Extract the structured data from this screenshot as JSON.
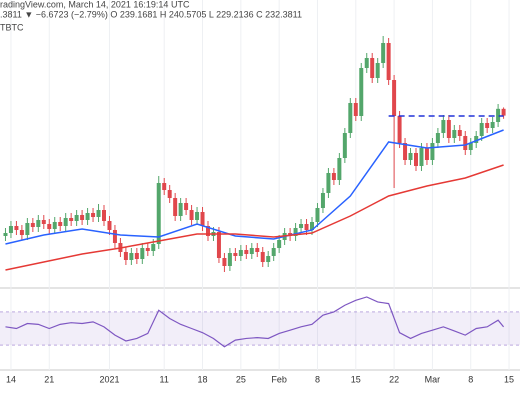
{
  "chart_data": [
    {
      "type": "candlestick",
      "title": "radingView.com, March 14, 2021 16:19:14 UTC",
      "subtitle": ".3811 ▼ −6.6723 (−2.79%) O 239.1681 H 240.5705 L 229.2136 C 232.3811",
      "label": "TBTC",
      "xlim": [
        "2020-12-12",
        "2021-03-17"
      ],
      "ylim": [
        60,
        348
      ],
      "grid": true,
      "up_color": "#53a66b",
      "down_color": "#e0474c",
      "xticks": [
        {
          "value": "2020-12-14",
          "label": "14"
        },
        {
          "value": "2020-12-21",
          "label": "21"
        },
        {
          "value": "2021-01-01",
          "label": "2021"
        },
        {
          "value": "2021-01-11",
          "label": "11"
        },
        {
          "value": "2021-01-18",
          "label": "18"
        },
        {
          "value": "2021-01-25",
          "label": "25"
        },
        {
          "value": "2021-02-01",
          "label": "Feb"
        },
        {
          "value": "2021-02-08",
          "label": "8"
        },
        {
          "value": "2021-02-15",
          "label": "15"
        },
        {
          "value": "2021-02-22",
          "label": "22"
        },
        {
          "value": "2021-03-01",
          "label": "Mar"
        },
        {
          "value": "2021-03-08",
          "label": "8"
        },
        {
          "value": "2021-03-15",
          "label": "15"
        }
      ],
      "x": [
        "2020-12-13",
        "2020-12-14",
        "2020-12-15",
        "2020-12-16",
        "2020-12-17",
        "2020-12-18",
        "2020-12-19",
        "2020-12-20",
        "2020-12-21",
        "2020-12-22",
        "2020-12-23",
        "2020-12-24",
        "2020-12-25",
        "2020-12-26",
        "2020-12-27",
        "2020-12-28",
        "2020-12-29",
        "2020-12-30",
        "2020-12-31",
        "2021-01-01",
        "2021-01-02",
        "2021-01-03",
        "2021-01-04",
        "2021-01-05",
        "2021-01-06",
        "2021-01-07",
        "2021-01-08",
        "2021-01-09",
        "2021-01-10",
        "2021-01-11",
        "2021-01-12",
        "2021-01-13",
        "2021-01-14",
        "2021-01-15",
        "2021-01-16",
        "2021-01-17",
        "2021-01-18",
        "2021-01-19",
        "2021-01-20",
        "2021-01-21",
        "2021-01-22",
        "2021-01-23",
        "2021-01-24",
        "2021-01-25",
        "2021-01-26",
        "2021-01-27",
        "2021-01-28",
        "2021-01-29",
        "2021-01-30",
        "2021-01-31",
        "2021-02-01",
        "2021-02-02",
        "2021-02-03",
        "2021-02-04",
        "2021-02-05",
        "2021-02-06",
        "2021-02-07",
        "2021-02-08",
        "2021-02-09",
        "2021-02-10",
        "2021-02-11",
        "2021-02-12",
        "2021-02-13",
        "2021-02-14",
        "2021-02-15",
        "2021-02-16",
        "2021-02-17",
        "2021-02-18",
        "2021-02-19",
        "2021-02-20",
        "2021-02-21",
        "2021-02-22",
        "2021-02-23",
        "2021-02-24",
        "2021-02-25",
        "2021-02-26",
        "2021-02-27",
        "2021-02-28",
        "2021-03-01",
        "2021-03-02",
        "2021-03-03",
        "2021-03-04",
        "2021-03-05",
        "2021-03-06",
        "2021-03-07",
        "2021-03-08",
        "2021-03-09",
        "2021-03-10",
        "2021-03-11",
        "2021-03-12",
        "2021-03-13",
        "2021-03-14"
      ],
      "open": [
        112,
        115,
        122,
        118,
        113,
        125,
        121,
        128,
        124,
        119,
        126,
        122,
        130,
        127,
        133,
        128,
        135,
        131,
        138,
        127,
        118,
        105,
        96,
        88,
        95,
        89,
        100,
        97,
        104,
        165,
        158,
        150,
        132,
        145,
        138,
        128,
        136,
        122,
        112,
        116,
        90,
        82,
        95,
        92,
        98,
        94,
        100,
        96,
        86,
        92,
        100,
        108,
        115,
        112,
        120,
        124,
        118,
        126,
        140,
        155,
        175,
        168,
        190,
        215,
        245,
        232,
        280,
        290,
        270,
        285,
        305,
        268,
        232,
        205,
        188,
        195,
        182,
        200,
        188,
        205,
        215,
        228,
        210,
        218,
        212,
        198,
        205,
        212,
        225,
        220,
        226,
        239.1681
      ],
      "high": [
        120,
        127,
        127,
        123,
        130,
        130,
        133,
        133,
        129,
        131,
        131,
        135,
        135,
        138,
        138,
        140,
        140,
        144,
        143,
        132,
        123,
        110,
        101,
        100,
        100,
        105,
        105,
        109,
        172,
        170,
        163,
        155,
        150,
        150,
        143,
        141,
        141,
        127,
        121,
        121,
        95,
        100,
        100,
        103,
        103,
        105,
        105,
        101,
        97,
        105,
        113,
        120,
        120,
        125,
        129,
        129,
        131,
        145,
        160,
        180,
        180,
        195,
        220,
        250,
        250,
        285,
        295,
        295,
        290,
        312,
        310,
        273,
        237,
        210,
        200,
        200,
        205,
        205,
        210,
        220,
        233,
        233,
        223,
        223,
        217,
        210,
        217,
        230,
        230,
        231,
        244,
        240.5705
      ],
      "low": [
        107,
        110,
        113,
        108,
        108,
        116,
        116,
        119,
        114,
        114,
        117,
        117,
        122,
        122,
        123,
        123,
        126,
        126,
        122,
        113,
        100,
        91,
        83,
        83,
        84,
        84,
        92,
        92,
        99,
        153,
        145,
        127,
        127,
        133,
        123,
        123,
        117,
        107,
        107,
        85,
        76,
        77,
        87,
        87,
        89,
        89,
        91,
        81,
        81,
        87,
        95,
        103,
        107,
        107,
        115,
        113,
        113,
        121,
        135,
        150,
        163,
        163,
        185,
        210,
        227,
        227,
        275,
        265,
        265,
        280,
        263,
        160,
        200,
        183,
        183,
        177,
        177,
        183,
        183,
        200,
        210,
        205,
        205,
        207,
        193,
        193,
        200,
        207,
        215,
        215,
        221,
        229.2136
      ],
      "close": [
        115,
        122,
        118,
        113,
        125,
        121,
        128,
        124,
        119,
        126,
        122,
        130,
        127,
        133,
        128,
        135,
        131,
        138,
        127,
        118,
        105,
        96,
        88,
        95,
        89,
        100,
        97,
        104,
        165,
        158,
        150,
        132,
        145,
        138,
        128,
        136,
        122,
        112,
        116,
        90,
        82,
        95,
        92,
        98,
        94,
        100,
        96,
        86,
        92,
        100,
        108,
        115,
        112,
        120,
        124,
        118,
        126,
        140,
        155,
        175,
        168,
        190,
        215,
        245,
        232,
        280,
        290,
        270,
        285,
        305,
        268,
        232,
        205,
        188,
        195,
        182,
        200,
        188,
        205,
        215,
        228,
        210,
        218,
        212,
        198,
        205,
        212,
        225,
        220,
        226,
        239.1681,
        232.3811
      ],
      "lines": [
        {
          "color": "#2962ff",
          "x": [
            "2020-12-13",
            "2020-12-20",
            "2020-12-27",
            "2021-01-03",
            "2021-01-10",
            "2021-01-17",
            "2021-01-24",
            "2021-01-31",
            "2021-02-07",
            "2021-02-14",
            "2021-02-21",
            "2021-02-28",
            "2021-03-07",
            "2021-03-14"
          ],
          "values": [
            104,
            113,
            119,
            113,
            111,
            124,
            112,
            109,
            118,
            152,
            206,
            200,
            203,
            218
          ]
        },
        {
          "color": "#e53935",
          "x": [
            "2020-12-13",
            "2020-12-20",
            "2020-12-27",
            "2021-01-03",
            "2021-01-10",
            "2021-01-17",
            "2021-01-24",
            "2021-01-31",
            "2021-02-07",
            "2021-02-14",
            "2021-02-21",
            "2021-02-28",
            "2021-03-07",
            "2021-03-14"
          ],
          "values": [
            78,
            86,
            94,
            100,
            107,
            114,
            114,
            111,
            115,
            132,
            152,
            162,
            170,
            183
          ]
        }
      ],
      "resistance": {
        "value": 232,
        "x": [
          "2021-02-21",
          "2021-03-14"
        ],
        "color": "#2032d8"
      }
    },
    {
      "type": "line",
      "xlim": [
        "2020-12-12",
        "2021-03-17"
      ],
      "ylim": [
        0,
        100
      ],
      "band": [
        30,
        70
      ],
      "color": "#7e57c2",
      "x": [
        "2020-12-13",
        "2020-12-15",
        "2020-12-17",
        "2020-12-19",
        "2020-12-21",
        "2020-12-23",
        "2020-12-25",
        "2020-12-27",
        "2020-12-29",
        "2020-12-31",
        "2021-01-02",
        "2021-01-04",
        "2021-01-06",
        "2021-01-08",
        "2021-01-10",
        "2021-01-12",
        "2021-01-14",
        "2021-01-16",
        "2021-01-18",
        "2021-01-20",
        "2021-01-22",
        "2021-01-24",
        "2021-01-26",
        "2021-01-28",
        "2021-01-30",
        "2021-02-01",
        "2021-02-03",
        "2021-02-05",
        "2021-02-07",
        "2021-02-09",
        "2021-02-11",
        "2021-02-13",
        "2021-02-15",
        "2021-02-17",
        "2021-02-19",
        "2021-02-21",
        "2021-02-23",
        "2021-02-25",
        "2021-02-27",
        "2021-03-01",
        "2021-03-03",
        "2021-03-05",
        "2021-03-07",
        "2021-03-09",
        "2021-03-11",
        "2021-03-13",
        "2021-03-14"
      ],
      "values": [
        52,
        50,
        56,
        55,
        50,
        55,
        57,
        56,
        58,
        52,
        42,
        35,
        38,
        44,
        72,
        62,
        55,
        50,
        45,
        38,
        28,
        36,
        38,
        39,
        38,
        44,
        48,
        52,
        55,
        66,
        70,
        78,
        84,
        88,
        82,
        80,
        45,
        38,
        44,
        48,
        52,
        47,
        42,
        50,
        52,
        60,
        52
      ]
    }
  ]
}
